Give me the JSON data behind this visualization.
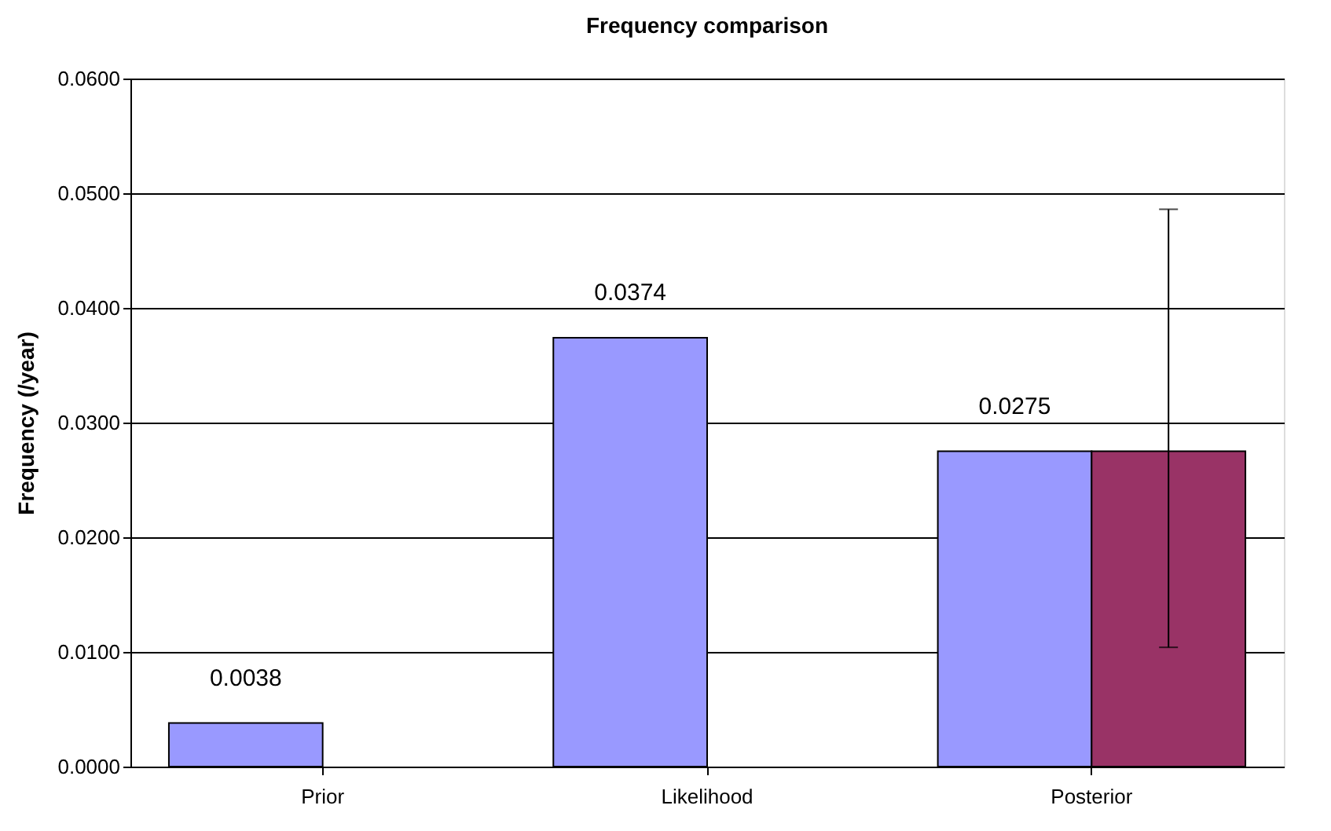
{
  "chart_data": {
    "type": "bar",
    "title": "Frequency comparison",
    "ylabel": "Frequency (/year)",
    "categories": [
      "Prior",
      "Likelihood",
      "Posterior"
    ],
    "series": [
      {
        "color": "#9999ff",
        "values": [
          0.0038,
          0.0374,
          0.0275
        ],
        "value_labels": [
          "0.0038",
          "0.0374",
          "0.0275"
        ]
      },
      {
        "color": "#993366",
        "values": [
          null,
          null,
          0.0275
        ],
        "errors": [
          null,
          null,
          [
            0.0104,
            0.0486
          ]
        ]
      }
    ],
    "ylim": [
      0,
      0.06
    ],
    "yticks": [
      {
        "value": 0,
        "label": "0.0000"
      },
      {
        "value": 0.01,
        "label": "0.0100"
      },
      {
        "value": 0.02,
        "label": "0.0200"
      },
      {
        "value": 0.03,
        "label": "0.0300"
      },
      {
        "value": 0.04,
        "label": "0.0400"
      },
      {
        "value": 0.05,
        "label": "0.0500"
      },
      {
        "value": 0.06,
        "label": "0.0600"
      }
    ],
    "grid": "y"
  }
}
